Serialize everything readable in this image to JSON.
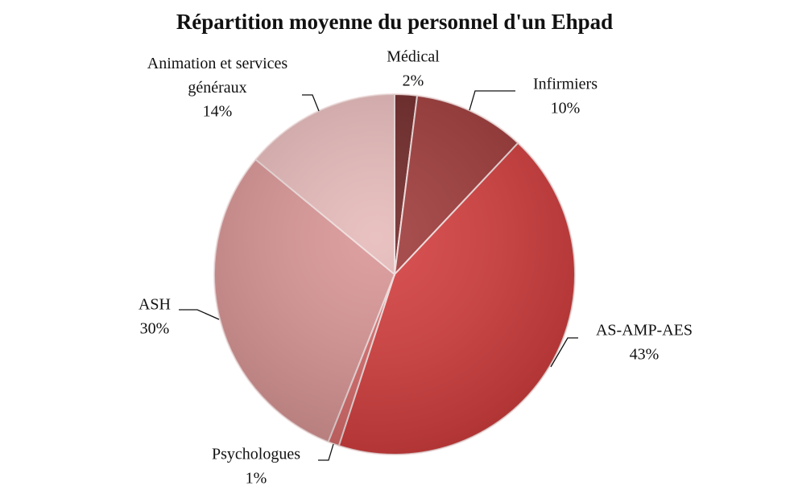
{
  "chart_data": {
    "type": "pie",
    "title": "Répartition moyenne du personnel d'un Ehpad",
    "categories": [
      "Médical",
      "Infirmiers",
      "AS-AMP-AES",
      "Psychologues",
      "ASH",
      "Animation et services généraux"
    ],
    "values": [
      2,
      10,
      43,
      1,
      30,
      14
    ],
    "value_labels": [
      "2%",
      "10%",
      "43%",
      "1%",
      "30%",
      "14%"
    ],
    "colors": [
      "#6e2424",
      "#9e3838",
      "#d43c3c",
      "#d96a6a",
      "#d99494",
      "#e6b9b9"
    ]
  }
}
